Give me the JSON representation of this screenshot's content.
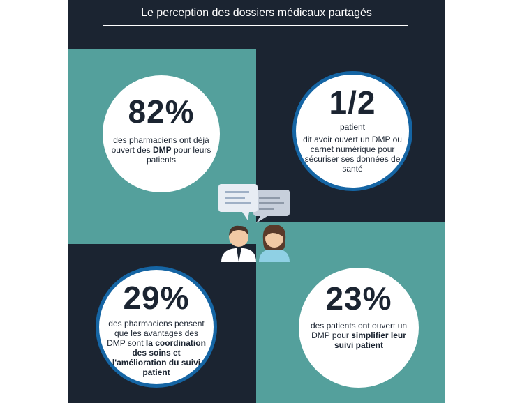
{
  "title": "Le perception des dossiers médicaux partagés",
  "stats": [
    {
      "value": "82%",
      "text_before": "des pharmaciens ont déjà ouvert des ",
      "text_bold": "DMP",
      "text_after": " pour leurs patients"
    },
    {
      "value": "1/2",
      "subtitle": "patient",
      "text": "dit avoir ouvert un DMP ou carnet numérique pour sécuriser ses données de santé"
    },
    {
      "value": "29%",
      "text_before": "des pharmaciens pensent que les avantages des DMP sont ",
      "text_bold": "la coordination des soins et l'amélioration du suivi patient"
    },
    {
      "value": "23%",
      "text_before": "des patients ont ouvert un DMP pour ",
      "text_bold": "simplifier leur suivi patient"
    }
  ],
  "center_icon": "doctor-patient-conversation-icon",
  "colors": {
    "background": "#1b2431",
    "teal": "#54a09c",
    "ring": "#1565a4",
    "text": "#1b2431"
  }
}
